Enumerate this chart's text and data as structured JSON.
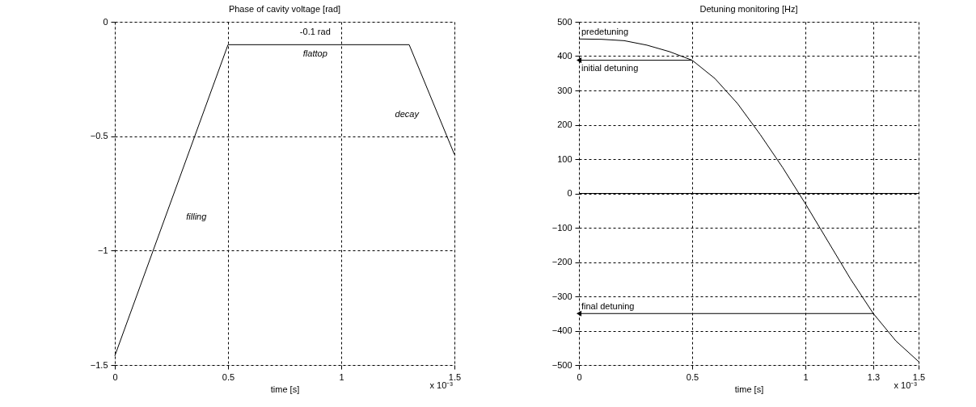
{
  "chart_data": [
    {
      "type": "line",
      "title": "Phase of cavity voltage [rad]",
      "xlabel": "time [s]",
      "x": [
        0,
        0.5,
        1.3,
        1.5
      ],
      "series": [
        {
          "color": "#000000",
          "values": [
            -1.46,
            -0.1,
            -0.1,
            -0.58
          ]
        }
      ],
      "xlim": [
        0,
        1.5
      ],
      "xticks": [
        0,
        0.5,
        1,
        1.5
      ],
      "ylim": [
        -1.5,
        0
      ],
      "yticks": [
        -1.5,
        -1,
        -0.5,
        0
      ],
      "grid": true,
      "line_style": "solid",
      "marker": "none",
      "annotations": [
        "-0.1 rad",
        "flattop",
        "decay",
        "filling",
        "x 10⁻³"
      ]
    },
    {
      "type": "line",
      "title": "Detuning monitoring [Hz]",
      "xlabel": "time [s]",
      "x": [
        0,
        0.1,
        0.2,
        0.3,
        0.4,
        0.5,
        0.6,
        0.7,
        0.8,
        0.9,
        1.0,
        1.1,
        1.2,
        1.3,
        1.4,
        1.5
      ],
      "series": [
        {
          "color": "#000000",
          "values": [
            450,
            449,
            445,
            432,
            413,
            388,
            335,
            262,
            172,
            75,
            -30,
            -140,
            -250,
            -350,
            -430,
            -490
          ]
        }
      ],
      "xlim": [
        0,
        1.5
      ],
      "xticks": [
        0,
        0.5,
        1,
        1.3,
        1.5
      ],
      "ylim": [
        -500,
        500
      ],
      "yticks": [
        -500,
        -400,
        -300,
        -200,
        -100,
        0,
        100,
        200,
        300,
        400,
        500
      ],
      "grid": true,
      "line_style": "solid",
      "marker": "none",
      "ref_lines": [
        {
          "axis": "y",
          "value": 0,
          "color": "#000000",
          "line_style": "solid"
        }
      ],
      "annotations": [
        {
          "text": "predetuning",
          "x": 0,
          "y": 450
        },
        {
          "text": "initial  detuning",
          "x": 0.5,
          "y": 388
        },
        {
          "text": "final detuning",
          "x": 1.3,
          "y": -350
        },
        "x 10⁻³"
      ]
    }
  ]
}
